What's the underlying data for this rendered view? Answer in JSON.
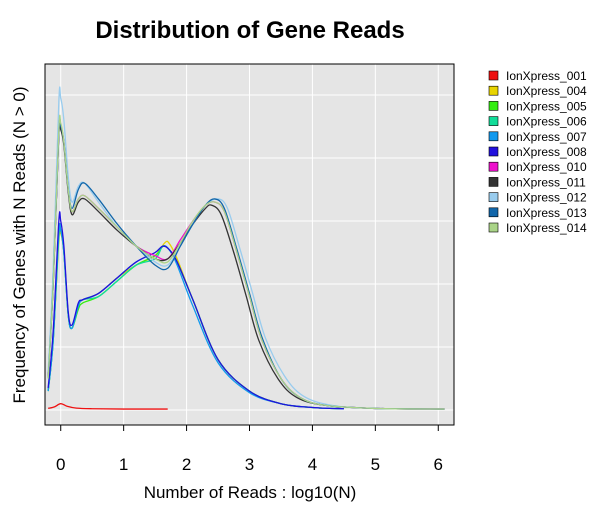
{
  "chart_data": {
    "type": "line",
    "title": "Distribution of Gene Reads",
    "xlabel": "Number of Reads : log10(N)",
    "ylabel": "Frequency of Genes with N Reads (N > 0)",
    "xlim": [
      -0.25,
      6.25
    ],
    "ylim": [
      0,
      1
    ],
    "x_ticks": [
      "0",
      "1",
      "2",
      "3",
      "4",
      "5",
      "6"
    ],
    "grid": true,
    "legend_position": "right",
    "series": [
      {
        "name": "IonXpress_001",
        "color": "#ee1111",
        "points": [
          [
            -0.2,
            0.005
          ],
          [
            -0.1,
            0.01
          ],
          [
            0,
            0.02
          ],
          [
            0.1,
            0.012
          ],
          [
            0.25,
            0.006
          ],
          [
            0.5,
            0.004
          ],
          [
            1,
            0.003
          ],
          [
            1.7,
            0.003
          ]
        ]
      },
      {
        "name": "IonXpress_004",
        "color": "#e8d400",
        "points": [
          [
            -0.2,
            0.06
          ],
          [
            -0.12,
            0.22
          ],
          [
            -0.03,
            0.54
          ],
          [
            0,
            0.56
          ],
          [
            0.05,
            0.5
          ],
          [
            0.12,
            0.3
          ],
          [
            0.18,
            0.26
          ],
          [
            0.28,
            0.33
          ],
          [
            0.35,
            0.35
          ],
          [
            0.6,
            0.37
          ],
          [
            0.9,
            0.42
          ],
          [
            1.2,
            0.46
          ],
          [
            1.5,
            0.49
          ],
          [
            1.65,
            0.53
          ],
          [
            1.72,
            0.53
          ],
          [
            1.85,
            0.48
          ],
          [
            2.1,
            0.35
          ],
          [
            2.5,
            0.16
          ],
          [
            3,
            0.06
          ],
          [
            3.5,
            0.02
          ],
          [
            4,
            0.008
          ],
          [
            4.5,
            0.004
          ]
        ]
      },
      {
        "name": "IonXpress_005",
        "color": "#33ee11",
        "points": [
          [
            -0.2,
            0.06
          ],
          [
            -0.12,
            0.22
          ],
          [
            -0.03,
            0.55
          ],
          [
            0,
            0.57
          ],
          [
            0.05,
            0.5
          ],
          [
            0.12,
            0.3
          ],
          [
            0.18,
            0.26
          ],
          [
            0.28,
            0.32
          ],
          [
            0.35,
            0.34
          ],
          [
            0.6,
            0.36
          ],
          [
            0.9,
            0.41
          ],
          [
            1.2,
            0.46
          ],
          [
            1.5,
            0.49
          ],
          [
            1.63,
            0.52
          ],
          [
            1.72,
            0.51
          ],
          [
            1.85,
            0.47
          ],
          [
            2.1,
            0.35
          ],
          [
            2.5,
            0.16
          ],
          [
            3,
            0.06
          ],
          [
            3.5,
            0.02
          ],
          [
            4,
            0.008
          ],
          [
            4.5,
            0.004
          ]
        ]
      },
      {
        "name": "IonXpress_006",
        "color": "#11dd99",
        "points": [
          [
            -0.2,
            0.06
          ],
          [
            -0.12,
            0.22
          ],
          [
            -0.03,
            0.56
          ],
          [
            0,
            0.57
          ],
          [
            0.05,
            0.5
          ],
          [
            0.12,
            0.3
          ],
          [
            0.18,
            0.26
          ],
          [
            0.28,
            0.33
          ],
          [
            0.35,
            0.35
          ],
          [
            0.6,
            0.36
          ],
          [
            0.9,
            0.41
          ],
          [
            1.2,
            0.46
          ],
          [
            1.5,
            0.48
          ],
          [
            1.62,
            0.52
          ],
          [
            1.72,
            0.51
          ],
          [
            1.85,
            0.47
          ],
          [
            2.1,
            0.35
          ],
          [
            2.5,
            0.16
          ],
          [
            3,
            0.06
          ],
          [
            3.5,
            0.02
          ],
          [
            4,
            0.008
          ],
          [
            4.5,
            0.004
          ]
        ]
      },
      {
        "name": "IonXpress_007",
        "color": "#1199ee",
        "points": [
          [
            -0.2,
            0.06
          ],
          [
            -0.12,
            0.22
          ],
          [
            -0.03,
            0.56
          ],
          [
            0,
            0.57
          ],
          [
            0.05,
            0.5
          ],
          [
            0.12,
            0.3
          ],
          [
            0.18,
            0.26
          ],
          [
            0.28,
            0.33
          ],
          [
            0.35,
            0.35
          ],
          [
            0.6,
            0.37
          ],
          [
            0.9,
            0.42
          ],
          [
            1.2,
            0.47
          ],
          [
            1.5,
            0.5
          ],
          [
            1.62,
            0.52
          ],
          [
            1.72,
            0.51
          ],
          [
            1.85,
            0.46
          ],
          [
            2.1,
            0.33
          ],
          [
            2.5,
            0.15
          ],
          [
            3,
            0.055
          ],
          [
            3.5,
            0.02
          ],
          [
            4,
            0.008
          ],
          [
            4.5,
            0.004
          ]
        ]
      },
      {
        "name": "IonXpress_008",
        "color": "#2211dd",
        "points": [
          [
            -0.2,
            0.07
          ],
          [
            -0.12,
            0.25
          ],
          [
            -0.03,
            0.6
          ],
          [
            0,
            0.6
          ],
          [
            0.05,
            0.52
          ],
          [
            0.12,
            0.31
          ],
          [
            0.18,
            0.27
          ],
          [
            0.28,
            0.34
          ],
          [
            0.35,
            0.35
          ],
          [
            0.6,
            0.37
          ],
          [
            0.9,
            0.42
          ],
          [
            1.2,
            0.47
          ],
          [
            1.5,
            0.5
          ],
          [
            1.62,
            0.52
          ],
          [
            1.72,
            0.51
          ],
          [
            1.85,
            0.47
          ],
          [
            2.1,
            0.35
          ],
          [
            2.5,
            0.16
          ],
          [
            3,
            0.06
          ],
          [
            3.5,
            0.02
          ],
          [
            4,
            0.008
          ],
          [
            4.5,
            0.004
          ]
        ]
      },
      {
        "name": "IonXpress_010",
        "color": "#ee11cc",
        "points": [
          [
            -0.2,
            0.1
          ],
          [
            -0.12,
            0.4
          ],
          [
            -0.03,
            0.88
          ],
          [
            0,
            0.9
          ],
          [
            0.05,
            0.85
          ],
          [
            0.12,
            0.7
          ],
          [
            0.18,
            0.63
          ],
          [
            0.28,
            0.67
          ],
          [
            0.38,
            0.68
          ],
          [
            0.6,
            0.64
          ],
          [
            0.9,
            0.58
          ],
          [
            1.2,
            0.52
          ],
          [
            1.5,
            0.49
          ],
          [
            1.7,
            0.48
          ],
          [
            1.9,
            0.54
          ],
          [
            2.1,
            0.6
          ],
          [
            2.3,
            0.65
          ],
          [
            2.45,
            0.66
          ],
          [
            2.6,
            0.63
          ],
          [
            2.8,
            0.5
          ],
          [
            3,
            0.36
          ],
          [
            3.2,
            0.22
          ],
          [
            3.5,
            0.1
          ],
          [
            3.8,
            0.04
          ],
          [
            4.2,
            0.015
          ],
          [
            5,
            0.005
          ],
          [
            6.1,
            0.003
          ]
        ]
      },
      {
        "name": "IonXpress_011",
        "color": "#333333",
        "points": [
          [
            -0.2,
            0.1
          ],
          [
            -0.12,
            0.4
          ],
          [
            -0.03,
            0.88
          ],
          [
            0,
            0.89
          ],
          [
            0.05,
            0.84
          ],
          [
            0.12,
            0.69
          ],
          [
            0.18,
            0.62
          ],
          [
            0.28,
            0.66
          ],
          [
            0.38,
            0.67
          ],
          [
            0.6,
            0.63
          ],
          [
            0.9,
            0.57
          ],
          [
            1.2,
            0.52
          ],
          [
            1.5,
            0.48
          ],
          [
            1.7,
            0.48
          ],
          [
            1.9,
            0.53
          ],
          [
            2.1,
            0.59
          ],
          [
            2.3,
            0.64
          ],
          [
            2.4,
            0.65
          ],
          [
            2.55,
            0.62
          ],
          [
            2.75,
            0.5
          ],
          [
            2.95,
            0.36
          ],
          [
            3.15,
            0.22
          ],
          [
            3.45,
            0.1
          ],
          [
            3.75,
            0.04
          ],
          [
            4.2,
            0.015
          ],
          [
            5,
            0.005
          ],
          [
            6.1,
            0.003
          ]
        ]
      },
      {
        "name": "IonXpress_012",
        "color": "#99ccee",
        "points": [
          [
            -0.2,
            0.12
          ],
          [
            -0.12,
            0.45
          ],
          [
            -0.03,
            0.98
          ],
          [
            0,
            0.99
          ],
          [
            0.05,
            0.92
          ],
          [
            0.12,
            0.74
          ],
          [
            0.18,
            0.66
          ],
          [
            0.28,
            0.71
          ],
          [
            0.38,
            0.72
          ],
          [
            0.6,
            0.66
          ],
          [
            0.9,
            0.58
          ],
          [
            1.2,
            0.52
          ],
          [
            1.5,
            0.47
          ],
          [
            1.7,
            0.46
          ],
          [
            1.9,
            0.52
          ],
          [
            2.1,
            0.59
          ],
          [
            2.3,
            0.65
          ],
          [
            2.5,
            0.67
          ],
          [
            2.65,
            0.64
          ],
          [
            2.85,
            0.51
          ],
          [
            3.05,
            0.37
          ],
          [
            3.25,
            0.23
          ],
          [
            3.55,
            0.11
          ],
          [
            3.85,
            0.045
          ],
          [
            4.3,
            0.015
          ],
          [
            5,
            0.005
          ],
          [
            6.1,
            0.003
          ]
        ]
      },
      {
        "name": "IonXpress_013",
        "color": "#1166aa",
        "points": [
          [
            -0.2,
            0.1
          ],
          [
            -0.12,
            0.4
          ],
          [
            -0.03,
            0.88
          ],
          [
            0,
            0.9
          ],
          [
            0.05,
            0.85
          ],
          [
            0.12,
            0.7
          ],
          [
            0.18,
            0.64
          ],
          [
            0.28,
            0.7
          ],
          [
            0.38,
            0.72
          ],
          [
            0.6,
            0.67
          ],
          [
            0.9,
            0.59
          ],
          [
            1.2,
            0.52
          ],
          [
            1.5,
            0.46
          ],
          [
            1.7,
            0.45
          ],
          [
            1.9,
            0.52
          ],
          [
            2.1,
            0.59
          ],
          [
            2.3,
            0.65
          ],
          [
            2.45,
            0.67
          ],
          [
            2.6,
            0.64
          ],
          [
            2.8,
            0.51
          ],
          [
            3,
            0.37
          ],
          [
            3.2,
            0.23
          ],
          [
            3.5,
            0.1
          ],
          [
            3.8,
            0.04
          ],
          [
            4.2,
            0.015
          ],
          [
            5,
            0.005
          ],
          [
            6.1,
            0.003
          ]
        ]
      },
      {
        "name": "IonXpress_014",
        "color": "#aad488",
        "points": [
          [
            -0.2,
            0.1
          ],
          [
            -0.12,
            0.4
          ],
          [
            -0.03,
            0.89
          ],
          [
            0,
            0.91
          ],
          [
            0.05,
            0.85
          ],
          [
            0.12,
            0.7
          ],
          [
            0.18,
            0.63
          ],
          [
            0.28,
            0.67
          ],
          [
            0.38,
            0.68
          ],
          [
            0.6,
            0.64
          ],
          [
            0.9,
            0.58
          ],
          [
            1.2,
            0.52
          ],
          [
            1.5,
            0.48
          ],
          [
            1.7,
            0.47
          ],
          [
            1.9,
            0.53
          ],
          [
            2.1,
            0.6
          ],
          [
            2.3,
            0.65
          ],
          [
            2.45,
            0.66
          ],
          [
            2.6,
            0.63
          ],
          [
            2.8,
            0.5
          ],
          [
            3,
            0.36
          ],
          [
            3.2,
            0.22
          ],
          [
            3.5,
            0.1
          ],
          [
            3.8,
            0.04
          ],
          [
            4.2,
            0.015
          ],
          [
            5,
            0.005
          ],
          [
            6.1,
            0.003
          ]
        ]
      }
    ]
  }
}
